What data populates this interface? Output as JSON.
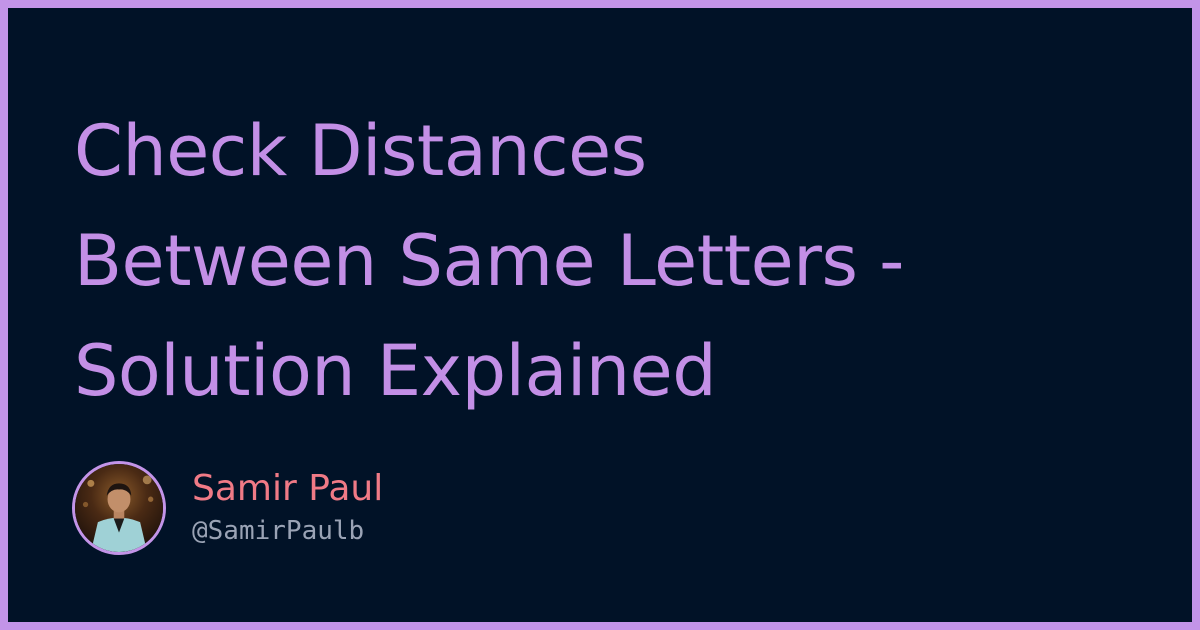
{
  "title": {
    "lines": [
      "Check Distances",
      "Between Same Letters -",
      "Solution Explained"
    ]
  },
  "author": {
    "name": "Samir Paul",
    "handle": "@SamirPaulb"
  },
  "colors": {
    "frame": "#C394E8",
    "background": "#011227",
    "title": "#C38FE6",
    "author_name": "#F07A86",
    "author_handle": "#9AA3B5"
  },
  "icons": {
    "avatar": "author-photo"
  }
}
